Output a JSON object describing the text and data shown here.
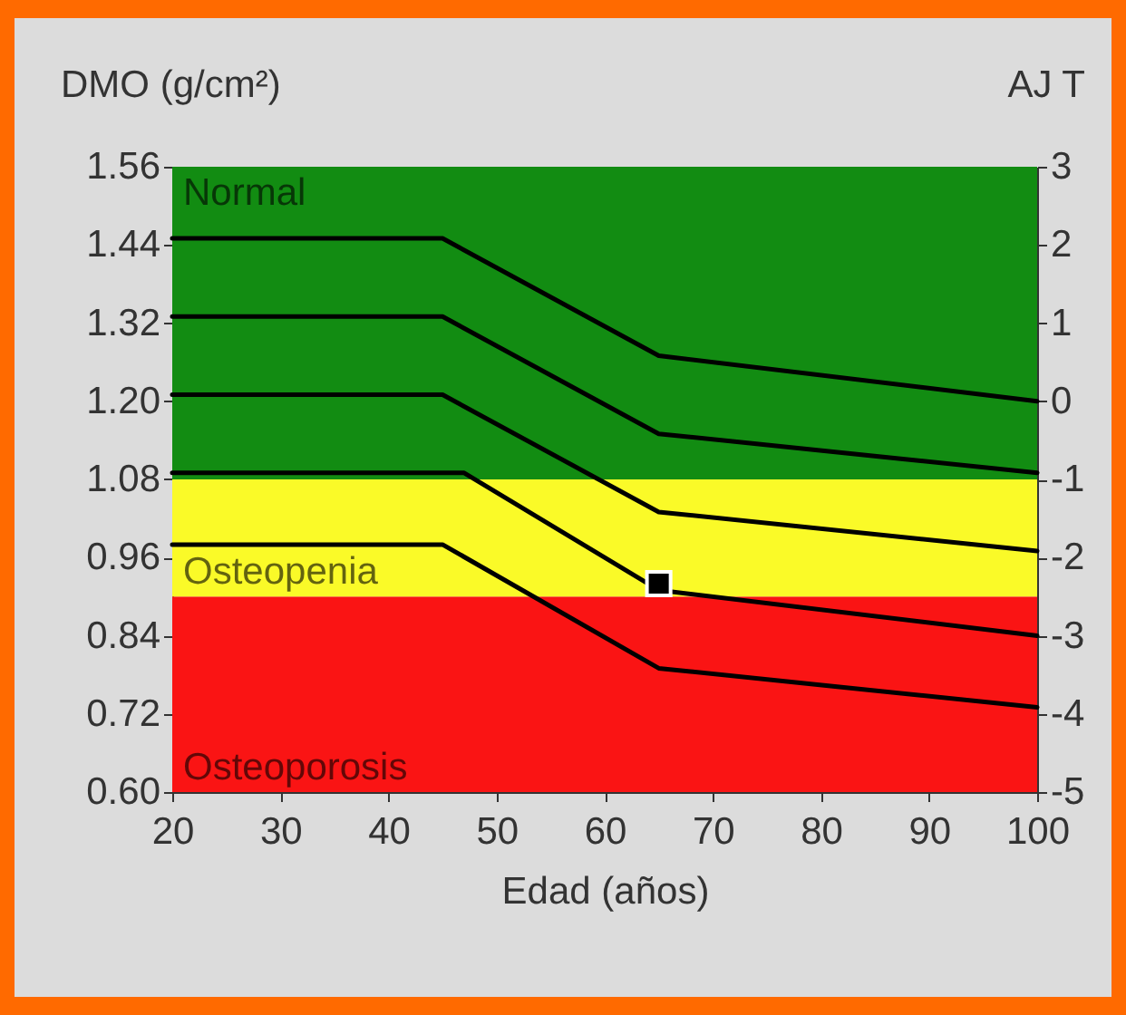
{
  "chart_data": {
    "type": "line",
    "xlabel": "Edad (años)",
    "ylabel": "DMO (g/cm²)",
    "y2label": "AJ T",
    "xlim": [
      20,
      100
    ],
    "xticks": [
      20,
      30,
      40,
      50,
      60,
      70,
      80,
      90,
      100
    ],
    "ylim": [
      0.6,
      1.56
    ],
    "yticks": [
      {
        "value": 0.6,
        "label": "0.60"
      },
      0.72,
      0.84,
      0.96,
      1.08,
      {
        "value": 1.2,
        "label": "1.20"
      },
      1.32,
      1.44,
      1.56
    ],
    "y2lim": [
      -5,
      3
    ],
    "y2ticks": [
      -5,
      -4,
      -3,
      -2,
      -1,
      0,
      1,
      2,
      3
    ],
    "bands": [
      {
        "axis": "y",
        "from": 1.08,
        "to": 1.56,
        "label": "Normal",
        "color": "#128c12"
      },
      {
        "axis": "y",
        "from": 0.9,
        "to": 1.08,
        "label": "Osteopenia",
        "color": "#fafa28"
      },
      {
        "axis": "y",
        "from": 0.6,
        "to": 0.9,
        "label": "Osteoporosis",
        "color": "#fa1414"
      }
    ],
    "series": [
      {
        "color": "#000000",
        "x": [
          20,
          45,
          65,
          100
        ],
        "values": [
          1.45,
          1.45,
          1.27,
          1.2
        ]
      },
      {
        "color": "#000000",
        "x": [
          20,
          45,
          65,
          100
        ],
        "values": [
          1.33,
          1.33,
          1.15,
          1.09
        ]
      },
      {
        "color": "#000000",
        "x": [
          20,
          45,
          65,
          100
        ],
        "values": [
          1.21,
          1.21,
          1.03,
          0.97
        ]
      },
      {
        "color": "#000000",
        "x": [
          20,
          47,
          65,
          100
        ],
        "values": [
          1.09,
          1.09,
          0.91,
          0.84
        ]
      },
      {
        "color": "#000000",
        "x": [
          20,
          45,
          65,
          100
        ],
        "values": [
          0.98,
          0.98,
          0.79,
          0.73
        ]
      },
      {
        "type": "scatter",
        "marker": "square",
        "color": "#000000",
        "x": [
          65
        ],
        "values": [
          0.92
        ]
      }
    ],
    "line_style": "solid"
  }
}
